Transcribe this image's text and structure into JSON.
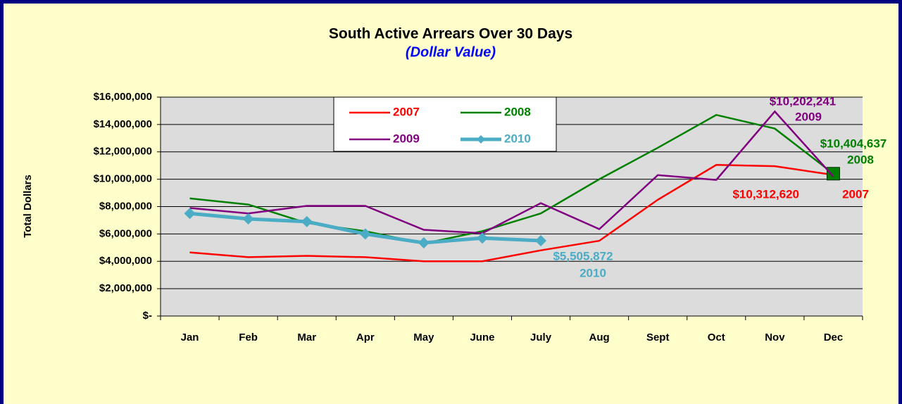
{
  "chart_data": {
    "type": "line",
    "title": "South Active Arrears Over 30 Days",
    "subtitle": "(Dollar Value)",
    "y_label": "Total Dollars",
    "categories": [
      "Jan",
      "Feb",
      "Mar",
      "Apr",
      "May",
      "June",
      "July",
      "Aug",
      "Sept",
      "Oct",
      "Nov",
      "Dec"
    ],
    "ylim": [
      0,
      16000000
    ],
    "yticks": [
      {
        "value": 0,
        "label": "$-"
      },
      {
        "value": 2000000,
        "label": "$2,000,000"
      },
      {
        "value": 4000000,
        "label": "$4,000,000"
      },
      {
        "value": 6000000,
        "label": "$6,000,000"
      },
      {
        "value": 8000000,
        "label": "$8,000,000"
      },
      {
        "value": 10000000,
        "label": "$10,000,000"
      },
      {
        "value": 12000000,
        "label": "$12,000,000"
      },
      {
        "value": 14000000,
        "label": "$14,000,000"
      },
      {
        "value": 16000000,
        "label": "$16,000,000"
      }
    ],
    "grid": true,
    "series": [
      {
        "name": "2007",
        "color": "#ff0000",
        "values": [
          4650000,
          4300000,
          4400000,
          4300000,
          4000000,
          4000000,
          4800000,
          5500000,
          8500000,
          11050000,
          10950000,
          10312620
        ],
        "value_labels": [
          null,
          null,
          null,
          null,
          null,
          null,
          null,
          null,
          null,
          null,
          null,
          "$10,312,620"
        ]
      },
      {
        "name": "2008",
        "color": "#008000",
        "values": [
          8600000,
          8150000,
          6800000,
          6200000,
          5300000,
          6200000,
          7500000,
          10000000,
          12300000,
          14700000,
          13700000,
          10404637
        ],
        "value_labels": [
          null,
          null,
          null,
          null,
          null,
          null,
          null,
          null,
          null,
          null,
          null,
          "$10,404,637"
        ]
      },
      {
        "name": "2009",
        "color": "#800080",
        "values": [
          7900000,
          7500000,
          8050000,
          8050000,
          6300000,
          6050000,
          8250000,
          6350000,
          10300000,
          9950000,
          14950000,
          10202241
        ],
        "value_labels": [
          null,
          null,
          null,
          null,
          null,
          null,
          null,
          null,
          null,
          null,
          null,
          "$10,202,241"
        ]
      },
      {
        "name": "2010",
        "color": "#4bacc6",
        "values": [
          7500000,
          7100000,
          6900000,
          6000000,
          5350000,
          5700000,
          5505872,
          null,
          null,
          null,
          null,
          null
        ],
        "value_labels": [
          null,
          null,
          null,
          null,
          null,
          null,
          "$5,505,872",
          null,
          null,
          null,
          null,
          null
        ]
      }
    ]
  }
}
